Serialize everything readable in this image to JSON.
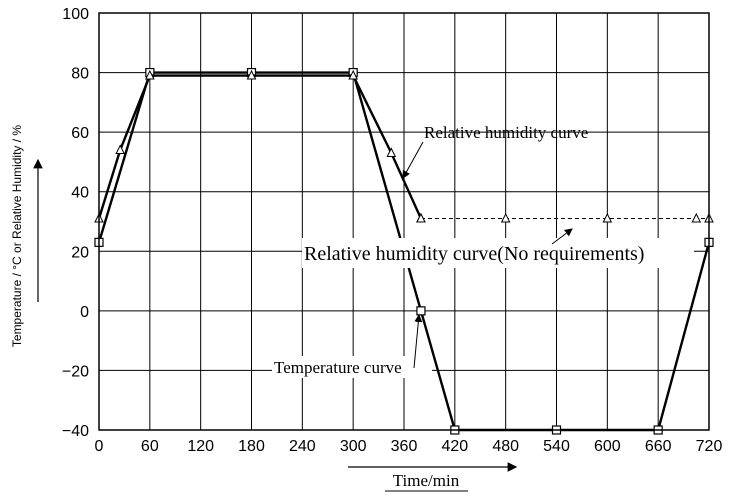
{
  "chart_data": {
    "type": "line",
    "xlabel": "Time/min",
    "ylabel": "Temperature / °C or Relative Humidity / %",
    "xlim": [
      0,
      720
    ],
    "ylim": [
      -40,
      100
    ],
    "grid": true,
    "x_ticks": [
      "0",
      "60",
      "120",
      "180",
      "240",
      "300",
      "360",
      "420",
      "480",
      "540",
      "600",
      "660",
      "720"
    ],
    "y_ticks": [
      "100",
      "80",
      "60",
      "40",
      "20",
      "0",
      "−20",
      "−40"
    ],
    "series": [
      {
        "name": "Temperature curve",
        "marker": "square",
        "points": [
          [
            0,
            23
          ],
          [
            60,
            80
          ],
          [
            180,
            80
          ],
          [
            300,
            80
          ],
          [
            380,
            0
          ],
          [
            420,
            -40
          ],
          [
            540,
            -40
          ],
          [
            660,
            -40
          ],
          [
            720,
            23
          ]
        ]
      },
      {
        "name": "Relative humidity curve",
        "marker": "triangle",
        "points": [
          [
            0,
            31
          ],
          [
            25,
            54
          ],
          [
            60,
            79
          ],
          [
            180,
            79
          ],
          [
            300,
            79
          ],
          [
            345,
            53
          ],
          [
            380,
            31
          ]
        ]
      },
      {
        "name": "Relative humidity curve(No requirements)",
        "marker": "triangle",
        "dashed": true,
        "points": [
          [
            380,
            31
          ],
          [
            480,
            31
          ],
          [
            600,
            31
          ],
          [
            705,
            31
          ],
          [
            720,
            31
          ]
        ]
      }
    ],
    "annotations": [
      {
        "text": "Relative humidity curve"
      },
      {
        "text": "Relative humidity curve(No requirements)"
      },
      {
        "text": "Temperature curve"
      }
    ]
  }
}
